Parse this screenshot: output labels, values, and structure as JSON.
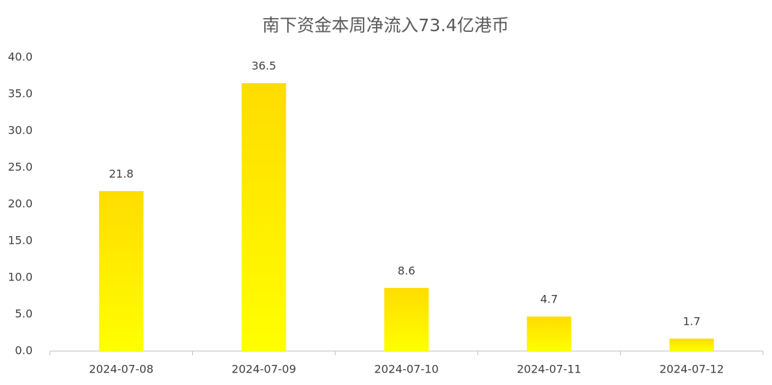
{
  "chart_data": {
    "type": "bar",
    "title": "南下资金本周净流入73.4亿港币",
    "categories": [
      "2024-07-08",
      "2024-07-09",
      "2024-07-10",
      "2024-07-11",
      "2024-07-12"
    ],
    "values": [
      21.8,
      36.5,
      8.6,
      4.7,
      1.7
    ],
    "color": [
      "#ffdc00",
      "#ffff00"
    ],
    "ylim": [
      0,
      40
    ],
    "yticks": [
      {
        "value": 0,
        "label": "0.0"
      },
      {
        "value": 5,
        "label": "5.0"
      },
      {
        "value": 10,
        "label": "10.0"
      },
      {
        "value": 15,
        "label": "15.0"
      },
      {
        "value": 20,
        "label": "20.0"
      },
      {
        "value": 25,
        "label": "25.0"
      },
      {
        "value": 30,
        "label": "30.0"
      },
      {
        "value": 35,
        "label": "35.0"
      },
      {
        "value": 40,
        "label": "40.0"
      }
    ],
    "grid": false
  }
}
